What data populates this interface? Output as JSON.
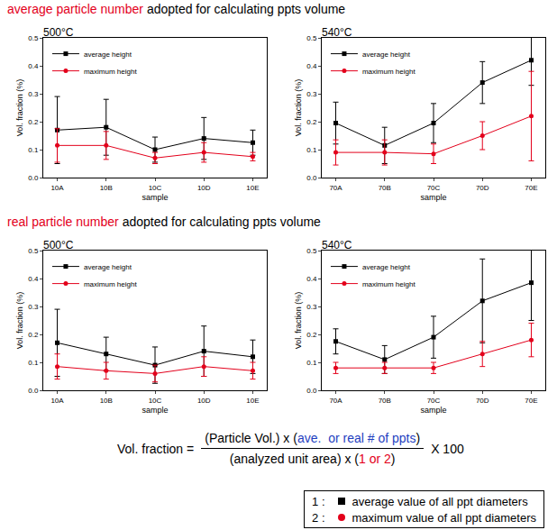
{
  "headings": [
    {
      "parts": [
        {
          "text": "average particle number",
          "color": "#e3001b"
        },
        {
          "text": "adopted for calculating ppts volume",
          "color": "#000000"
        }
      ]
    },
    {
      "parts": [
        {
          "text": "real particle number",
          "color": "#e3001b"
        },
        {
          "text": "adopted for calculating ppts volume",
          "color": "#000000"
        }
      ]
    }
  ],
  "chart_data": [
    {
      "type": "line",
      "title": "500°C",
      "x_label": "sample",
      "y_label": "Vol. fraction (%)",
      "categories": [
        "10A",
        "10B",
        "10C",
        "10D",
        "10E"
      ],
      "series": [
        {
          "name": "average height",
          "color": "#000000",
          "marker": "square",
          "line_style": "solid",
          "values": [
            0.17,
            0.18,
            0.1,
            0.14,
            0.125
          ],
          "error": [
            0.12,
            0.1,
            0.045,
            0.075,
            0.045
          ]
        },
        {
          "name": "maximum height",
          "color": "#e3001b",
          "marker": "circle",
          "line_style": "solid",
          "values": [
            0.115,
            0.115,
            0.07,
            0.09,
            0.075
          ],
          "error": [
            0.06,
            0.05,
            0.02,
            0.035,
            0.015
          ]
        }
      ],
      "ylim": [
        0,
        0.5
      ],
      "yticks": [
        {
          "value": 0,
          "label": "0.0"
        },
        0.1,
        0.2,
        0.3,
        0.4,
        0.5
      ],
      "grid": false,
      "legend": "top left"
    },
    {
      "type": "line",
      "title": "540°C",
      "x_label": "sample",
      "y_label": "Vol. fraction (%)",
      "categories": [
        "70A",
        "70B",
        "70C",
        "70D",
        "70E"
      ],
      "series": [
        {
          "name": "average height",
          "color": "#000000",
          "marker": "square",
          "line_style": "solid",
          "values": [
            0.195,
            0.115,
            0.195,
            0.34,
            0.42
          ],
          "error": [
            0.075,
            0.065,
            0.07,
            0.075,
            0.09
          ]
        },
        {
          "name": "maximum height",
          "color": "#e3001b",
          "marker": "circle",
          "line_style": "solid",
          "values": [
            0.09,
            0.09,
            0.085,
            0.15,
            0.22
          ],
          "error": [
            0.045,
            0.045,
            0.035,
            0.05,
            0.16
          ]
        }
      ],
      "ylim": [
        0,
        0.5
      ],
      "yticks": [
        {
          "value": 0,
          "label": "0.0"
        },
        0.1,
        0.2,
        0.3,
        0.4,
        0.5
      ],
      "grid": false,
      "legend": "top left"
    },
    {
      "type": "line",
      "title": "500°C",
      "x_label": "sample",
      "y_label": "Vol. fraction (%)",
      "categories": [
        "10A",
        "10B",
        "10C",
        "10D",
        "10E"
      ],
      "series": [
        {
          "name": "average height",
          "color": "#000000",
          "marker": "square",
          "line_style": "solid",
          "values": [
            0.17,
            0.13,
            0.09,
            0.14,
            0.12
          ],
          "error": [
            0.12,
            0.06,
            0.065,
            0.09,
            0.06
          ]
        },
        {
          "name": "maximum height",
          "color": "#e3001b",
          "marker": "circle",
          "line_style": "solid",
          "values": [
            0.085,
            0.07,
            0.06,
            0.085,
            0.07
          ],
          "error": [
            0.045,
            0.03,
            0.03,
            0.035,
            0.03
          ]
        }
      ],
      "ylim": [
        0,
        0.5
      ],
      "yticks": [
        {
          "value": 0,
          "label": "0.0"
        },
        0.1,
        0.2,
        0.3,
        0.4,
        0.5
      ],
      "grid": false,
      "legend": "top left"
    },
    {
      "type": "line",
      "title": "540°C",
      "x_label": "sample",
      "y_label": "Vol. fraction (%)",
      "categories": [
        "70A",
        "70B",
        "70C",
        "70D",
        "70E"
      ],
      "series": [
        {
          "name": "average height",
          "color": "#000000",
          "marker": "square",
          "line_style": "solid",
          "values": [
            0.175,
            0.11,
            0.19,
            0.32,
            0.385
          ],
          "error": [
            0.045,
            0.05,
            0.075,
            0.15,
            0.135
          ]
        },
        {
          "name": "maximum height",
          "color": "#e3001b",
          "marker": "circle",
          "line_style": "solid",
          "values": [
            0.08,
            0.08,
            0.08,
            0.13,
            0.18
          ],
          "error": [
            0.02,
            0.02,
            0.02,
            0.045,
            0.06
          ]
        }
      ],
      "ylim": [
        0,
        0.5
      ],
      "yticks": [
        {
          "value": 0,
          "label": "0.0"
        },
        0.1,
        0.2,
        0.3,
        0.4,
        0.5
      ],
      "grid": false,
      "legend": "top left"
    }
  ],
  "formula": {
    "left": "Vol. fraction =",
    "numerator": [
      {
        "text": "(Particle Vol.) x (",
        "color": "#000000"
      },
      {
        "text": "ave.  or real # of ppts",
        "color": "#1f3fbf"
      },
      {
        "text": ")",
        "color": "#000000"
      }
    ],
    "denominator": [
      {
        "text": "(analyzed unit area) x (",
        "color": "#000000"
      },
      {
        "text": "1 or 2",
        "color": "#e3001b"
      },
      {
        "text": ")",
        "color": "#000000"
      }
    ],
    "right": "X 100"
  },
  "key": [
    {
      "label": "1 :",
      "marker": "square",
      "color": "#000000",
      "text": "average value of all ppt diameters"
    },
    {
      "label": "2 :",
      "marker": "circle",
      "color": "#e3001b",
      "text": "maximum value of all ppt diameters"
    }
  ]
}
